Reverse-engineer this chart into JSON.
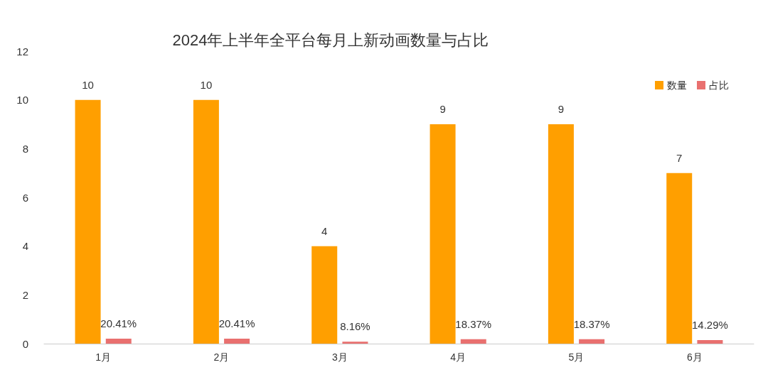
{
  "chart_data": {
    "type": "bar",
    "title": "2024年上半年全平台每月上新动画数量与占比",
    "categories": [
      "1月",
      "2月",
      "3月",
      "4月",
      "5月",
      "6月"
    ],
    "series": [
      {
        "name": "数量",
        "color": "#ff9f00",
        "values": [
          10,
          10,
          4,
          9,
          9,
          7
        ],
        "value_labels": [
          "10",
          "10",
          "4",
          "9",
          "9",
          "7"
        ]
      },
      {
        "name": "占比",
        "color": "#e9706f",
        "values": [
          0.2041,
          0.2041,
          0.0816,
          0.1837,
          0.1837,
          0.1429
        ],
        "value_labels": [
          "20.41%",
          "20.41%",
          "8.16%",
          "18.37%",
          "18.37%",
          "14.29%"
        ]
      }
    ],
    "ylim": [
      0,
      12
    ],
    "yticks": [
      0,
      2,
      4,
      6,
      8,
      10,
      12
    ],
    "grid": false,
    "legend": "top right"
  }
}
